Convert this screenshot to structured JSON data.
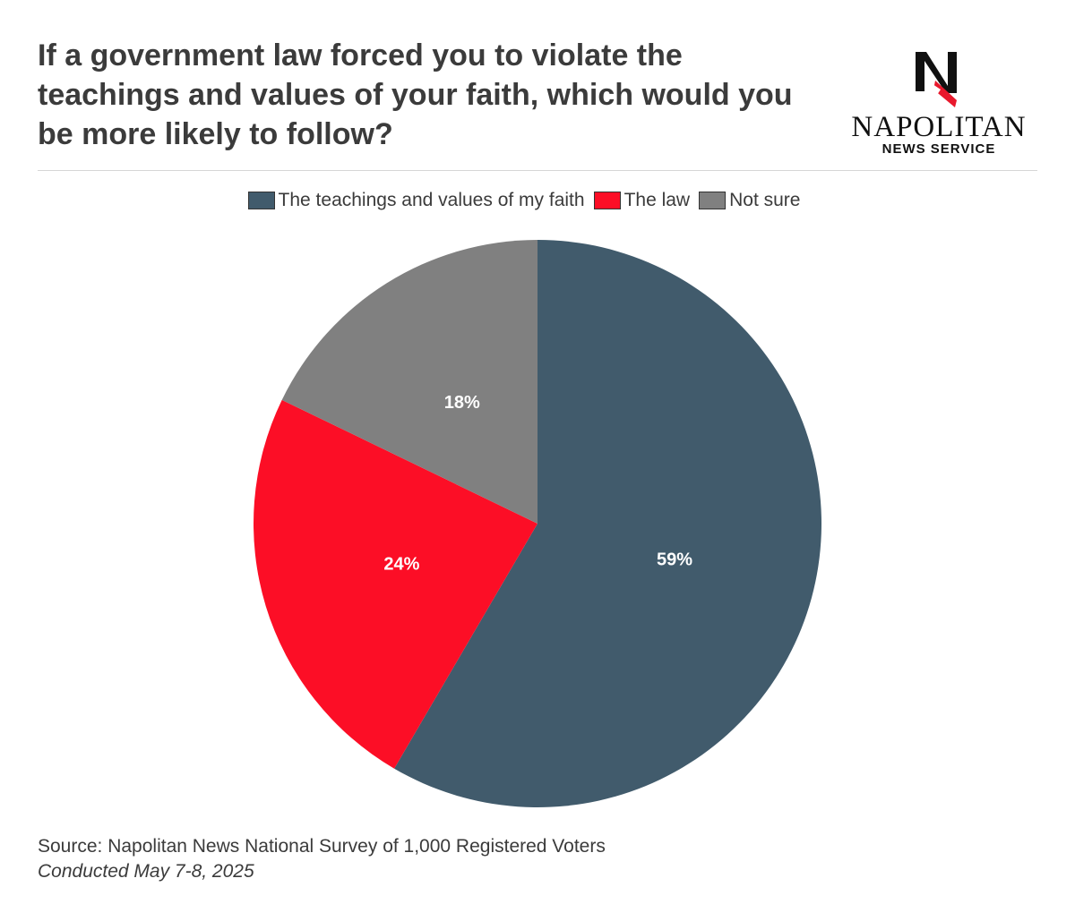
{
  "header": {
    "title": "If a government law forced you to violate the teachings and values of your faith, which would you be more likely to follow?"
  },
  "logo": {
    "name": "NAPOLITAN",
    "subtitle": "NEWS SERVICE",
    "mark_letter": "N"
  },
  "footer": {
    "source": "Source: Napolitan News National Survey of 1,000 Registered Voters",
    "conducted": "Conducted May 7-8, 2025"
  },
  "chart_data": {
    "type": "pie",
    "title": "",
    "legend_position": "top-center",
    "start_angle": "12 o'clock",
    "direction": "clockwise",
    "categories": [
      "The teachings and values of my faith",
      "The law",
      "Not sure"
    ],
    "values": [
      59,
      24,
      18
    ],
    "labels": [
      "59%",
      "24%",
      "18%"
    ],
    "colors": [
      "#415b6c",
      "#fc0e26",
      "#808080"
    ]
  }
}
